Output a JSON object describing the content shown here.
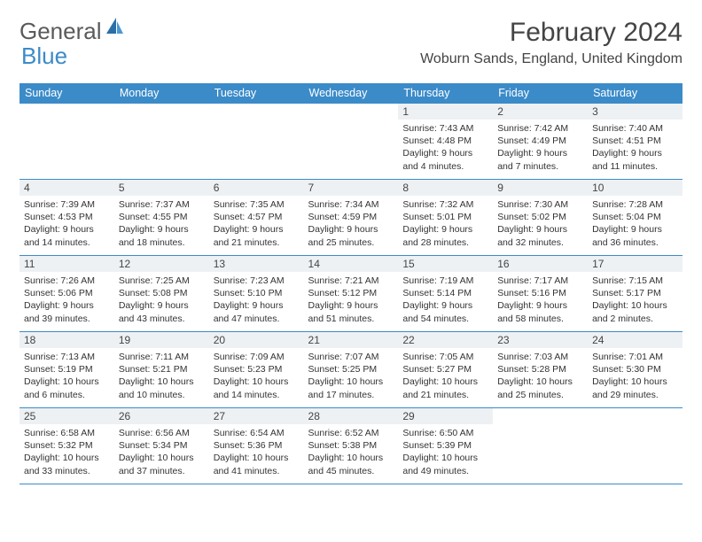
{
  "logo": {
    "text1": "General",
    "text2": "Blue",
    "accent": "#3b8bc9"
  },
  "title": "February 2024",
  "location": "Woburn Sands, England, United Kingdom",
  "header_bg": "#3b8bc9",
  "days": [
    "Sunday",
    "Monday",
    "Tuesday",
    "Wednesday",
    "Thursday",
    "Friday",
    "Saturday"
  ],
  "weeks": [
    [
      {
        "n": "",
        "sr": "",
        "ss": "",
        "dl": ""
      },
      {
        "n": "",
        "sr": "",
        "ss": "",
        "dl": ""
      },
      {
        "n": "",
        "sr": "",
        "ss": "",
        "dl": ""
      },
      {
        "n": "",
        "sr": "",
        "ss": "",
        "dl": ""
      },
      {
        "n": "1",
        "sr": "Sunrise: 7:43 AM",
        "ss": "Sunset: 4:48 PM",
        "dl": "Daylight: 9 hours and 4 minutes."
      },
      {
        "n": "2",
        "sr": "Sunrise: 7:42 AM",
        "ss": "Sunset: 4:49 PM",
        "dl": "Daylight: 9 hours and 7 minutes."
      },
      {
        "n": "3",
        "sr": "Sunrise: 7:40 AM",
        "ss": "Sunset: 4:51 PM",
        "dl": "Daylight: 9 hours and 11 minutes."
      }
    ],
    [
      {
        "n": "4",
        "sr": "Sunrise: 7:39 AM",
        "ss": "Sunset: 4:53 PM",
        "dl": "Daylight: 9 hours and 14 minutes."
      },
      {
        "n": "5",
        "sr": "Sunrise: 7:37 AM",
        "ss": "Sunset: 4:55 PM",
        "dl": "Daylight: 9 hours and 18 minutes."
      },
      {
        "n": "6",
        "sr": "Sunrise: 7:35 AM",
        "ss": "Sunset: 4:57 PM",
        "dl": "Daylight: 9 hours and 21 minutes."
      },
      {
        "n": "7",
        "sr": "Sunrise: 7:34 AM",
        "ss": "Sunset: 4:59 PM",
        "dl": "Daylight: 9 hours and 25 minutes."
      },
      {
        "n": "8",
        "sr": "Sunrise: 7:32 AM",
        "ss": "Sunset: 5:01 PM",
        "dl": "Daylight: 9 hours and 28 minutes."
      },
      {
        "n": "9",
        "sr": "Sunrise: 7:30 AM",
        "ss": "Sunset: 5:02 PM",
        "dl": "Daylight: 9 hours and 32 minutes."
      },
      {
        "n": "10",
        "sr": "Sunrise: 7:28 AM",
        "ss": "Sunset: 5:04 PM",
        "dl": "Daylight: 9 hours and 36 minutes."
      }
    ],
    [
      {
        "n": "11",
        "sr": "Sunrise: 7:26 AM",
        "ss": "Sunset: 5:06 PM",
        "dl": "Daylight: 9 hours and 39 minutes."
      },
      {
        "n": "12",
        "sr": "Sunrise: 7:25 AM",
        "ss": "Sunset: 5:08 PM",
        "dl": "Daylight: 9 hours and 43 minutes."
      },
      {
        "n": "13",
        "sr": "Sunrise: 7:23 AM",
        "ss": "Sunset: 5:10 PM",
        "dl": "Daylight: 9 hours and 47 minutes."
      },
      {
        "n": "14",
        "sr": "Sunrise: 7:21 AM",
        "ss": "Sunset: 5:12 PM",
        "dl": "Daylight: 9 hours and 51 minutes."
      },
      {
        "n": "15",
        "sr": "Sunrise: 7:19 AM",
        "ss": "Sunset: 5:14 PM",
        "dl": "Daylight: 9 hours and 54 minutes."
      },
      {
        "n": "16",
        "sr": "Sunrise: 7:17 AM",
        "ss": "Sunset: 5:16 PM",
        "dl": "Daylight: 9 hours and 58 minutes."
      },
      {
        "n": "17",
        "sr": "Sunrise: 7:15 AM",
        "ss": "Sunset: 5:17 PM",
        "dl": "Daylight: 10 hours and 2 minutes."
      }
    ],
    [
      {
        "n": "18",
        "sr": "Sunrise: 7:13 AM",
        "ss": "Sunset: 5:19 PM",
        "dl": "Daylight: 10 hours and 6 minutes."
      },
      {
        "n": "19",
        "sr": "Sunrise: 7:11 AM",
        "ss": "Sunset: 5:21 PM",
        "dl": "Daylight: 10 hours and 10 minutes."
      },
      {
        "n": "20",
        "sr": "Sunrise: 7:09 AM",
        "ss": "Sunset: 5:23 PM",
        "dl": "Daylight: 10 hours and 14 minutes."
      },
      {
        "n": "21",
        "sr": "Sunrise: 7:07 AM",
        "ss": "Sunset: 5:25 PM",
        "dl": "Daylight: 10 hours and 17 minutes."
      },
      {
        "n": "22",
        "sr": "Sunrise: 7:05 AM",
        "ss": "Sunset: 5:27 PM",
        "dl": "Daylight: 10 hours and 21 minutes."
      },
      {
        "n": "23",
        "sr": "Sunrise: 7:03 AM",
        "ss": "Sunset: 5:28 PM",
        "dl": "Daylight: 10 hours and 25 minutes."
      },
      {
        "n": "24",
        "sr": "Sunrise: 7:01 AM",
        "ss": "Sunset: 5:30 PM",
        "dl": "Daylight: 10 hours and 29 minutes."
      }
    ],
    [
      {
        "n": "25",
        "sr": "Sunrise: 6:58 AM",
        "ss": "Sunset: 5:32 PM",
        "dl": "Daylight: 10 hours and 33 minutes."
      },
      {
        "n": "26",
        "sr": "Sunrise: 6:56 AM",
        "ss": "Sunset: 5:34 PM",
        "dl": "Daylight: 10 hours and 37 minutes."
      },
      {
        "n": "27",
        "sr": "Sunrise: 6:54 AM",
        "ss": "Sunset: 5:36 PM",
        "dl": "Daylight: 10 hours and 41 minutes."
      },
      {
        "n": "28",
        "sr": "Sunrise: 6:52 AM",
        "ss": "Sunset: 5:38 PM",
        "dl": "Daylight: 10 hours and 45 minutes."
      },
      {
        "n": "29",
        "sr": "Sunrise: 6:50 AM",
        "ss": "Sunset: 5:39 PM",
        "dl": "Daylight: 10 hours and 49 minutes."
      },
      {
        "n": "",
        "sr": "",
        "ss": "",
        "dl": ""
      },
      {
        "n": "",
        "sr": "",
        "ss": "",
        "dl": ""
      }
    ]
  ]
}
